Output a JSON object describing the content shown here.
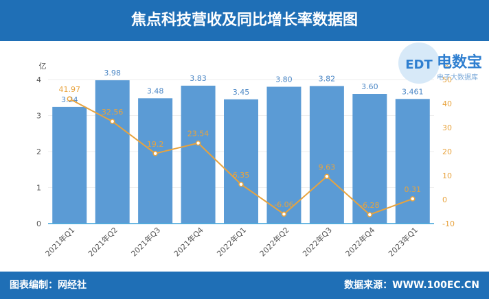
{
  "header": {
    "title": "焦点科技营收及同比增长率数据图"
  },
  "footer": {
    "left": "图表编制：网经社",
    "right": "数据来源：WWW.100EC.CN"
  },
  "logo": {
    "badge": "EDT",
    "main": "电数宝",
    "sub": "电子大数据库"
  },
  "colors": {
    "header_bg": "#1f6fb6",
    "bar": "#5b9bd5",
    "line": "#e8a33d",
    "axis_right": "#e8a33d"
  },
  "chart_data": {
    "type": "bar",
    "categories": [
      "2021年Q1",
      "2021年Q2",
      "2021年Q3",
      "2021年Q4",
      "2022年Q1",
      "2022年Q2",
      "2022年Q3",
      "2022年Q4",
      "2023年Q1"
    ],
    "series": [
      {
        "type": "bar",
        "axis": "left",
        "values": [
          3.24,
          3.98,
          3.48,
          3.83,
          3.45,
          3.8,
          3.82,
          3.6,
          3.461
        ],
        "labels": [
          "3.24",
          "3.98",
          "3.48",
          "3.83",
          "3.45",
          "3.80",
          "3.82",
          "3.60",
          "3.461"
        ]
      },
      {
        "type": "line",
        "axis": "right",
        "values": [
          41.97,
          32.56,
          19.2,
          23.54,
          6.35,
          -6.06,
          9.63,
          -6.28,
          0.31
        ],
        "labels": [
          "41.97",
          "32.56",
          "19.2",
          "23.54",
          "6.35",
          "-6.06",
          "9.63",
          "-6.28",
          "0.31"
        ]
      }
    ],
    "y_left": {
      "label": "亿",
      "range": [
        0,
        4
      ],
      "ticks": [
        "0",
        "1",
        "2",
        "3",
        "4"
      ]
    },
    "y_right": {
      "label": "%",
      "range": [
        -10,
        50
      ],
      "ticks": [
        "-10",
        "0",
        "10",
        "20",
        "30",
        "40",
        "50"
      ]
    },
    "grid": true
  }
}
